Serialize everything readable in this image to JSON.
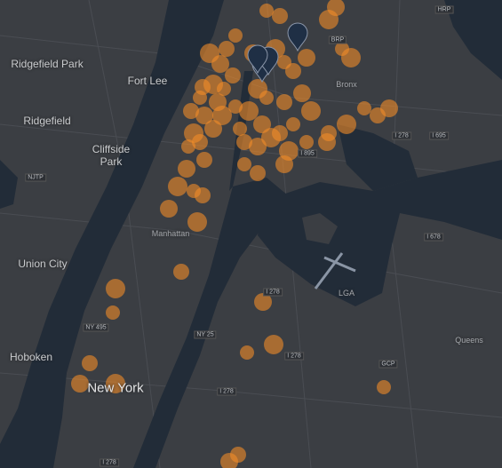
{
  "places": [
    {
      "label": "Ridgefield Park"
    },
    {
      "label": "Fort Lee"
    },
    {
      "label": "Ridgefield"
    },
    {
      "label": "Cliffside Park"
    },
    {
      "label": "Union City"
    },
    {
      "label": "Hoboken"
    },
    {
      "label": "New York"
    },
    {
      "label": "Manhattan"
    },
    {
      "label": "Bronx"
    },
    {
      "label": "Queens"
    },
    {
      "label": "LGA"
    }
  ],
  "roads": [
    {
      "label": "I 278"
    },
    {
      "label": "I 695"
    },
    {
      "label": "I 895"
    },
    {
      "label": "I 678"
    },
    {
      "label": "I 278"
    },
    {
      "label": "NY 495"
    },
    {
      "label": "NY 25"
    },
    {
      "label": "I 278"
    },
    {
      "label": "GCP"
    },
    {
      "label": "BRP"
    },
    {
      "label": "HRP"
    },
    {
      "label": "I 278"
    },
    {
      "label": "I 278"
    },
    {
      "label": "NJTP"
    }
  ]
}
